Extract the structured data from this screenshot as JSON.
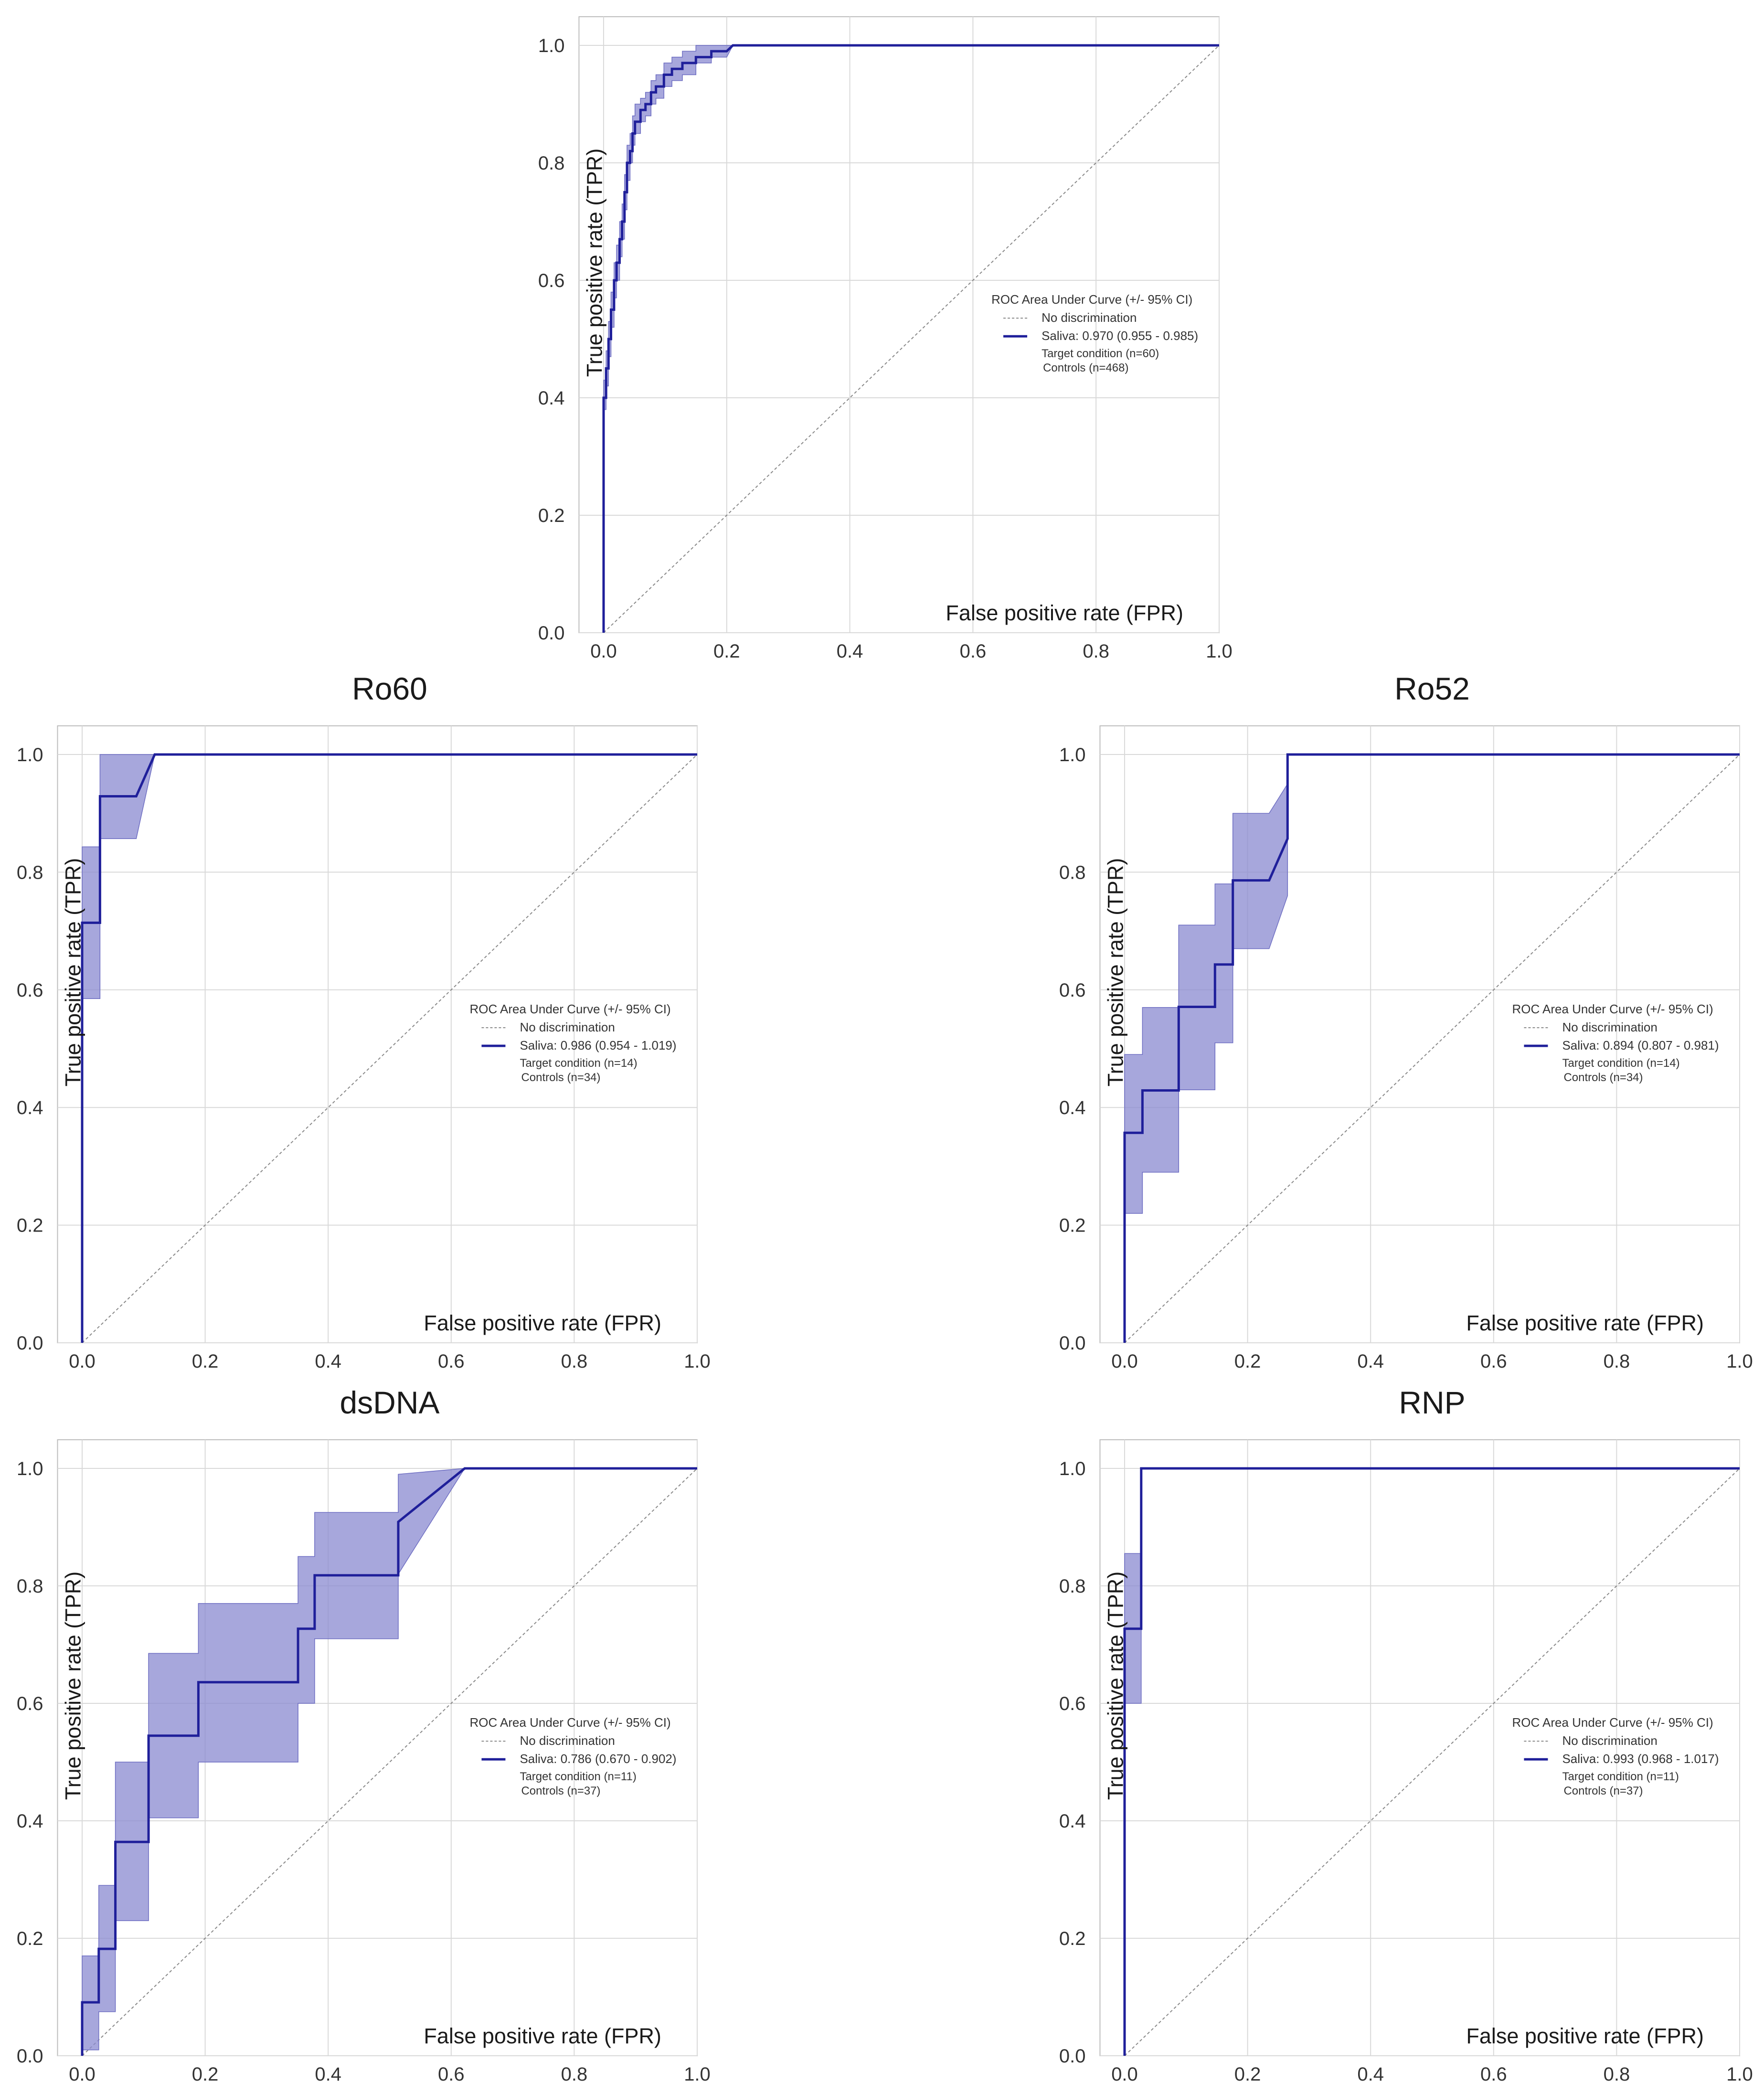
{
  "colors": {
    "curve": "#1f1f9a",
    "ci_band": "#8a8ad0",
    "diagonal": "#888888",
    "grid": "#d9d9d9",
    "frame": "#bdbdbd"
  },
  "chart_data": [
    {
      "id": "overall",
      "type": "line",
      "title": "",
      "xlabel": "False positive rate (FPR)",
      "ylabel": "True positive rate (TPR)",
      "xlim": [
        0,
        1
      ],
      "ylim": [
        0,
        1
      ],
      "grid": true,
      "xticks": [
        "0.0",
        "0.2",
        "0.4",
        "0.6",
        "0.8",
        "1.0"
      ],
      "yticks": [
        "0.0",
        "0.2",
        "0.4",
        "0.6",
        "0.8",
        "1.0"
      ],
      "legend": {
        "title": "ROC Area Under Curve (+/- 95% CI)",
        "no_discrimination": "No discrimination",
        "series_label": "Saliva: 0.970 (0.955 - 0.985)",
        "target": "Target condition (n=60)",
        "controls": "Controls (n=468)",
        "placement": "center-right"
      },
      "series": [
        {
          "name": "Saliva",
          "auc": 0.97,
          "ci": [
            0.955,
            0.985
          ],
          "x": [
            0,
            0,
            0.004,
            0.004,
            0.008,
            0.008,
            0.012,
            0.012,
            0.017,
            0.017,
            0.021,
            0.021,
            0.026,
            0.026,
            0.03,
            0.03,
            0.034,
            0.034,
            0.038,
            0.038,
            0.043,
            0.043,
            0.047,
            0.047,
            0.051,
            0.051,
            0.06,
            0.06,
            0.068,
            0.068,
            0.077,
            0.077,
            0.085,
            0.085,
            0.098,
            0.098,
            0.111,
            0.111,
            0.128,
            0.128,
            0.15,
            0.15,
            0.175,
            0.175,
            0.2,
            0.21,
            1.0
          ],
          "y": [
            0,
            0.4,
            0.4,
            0.45,
            0.45,
            0.5,
            0.5,
            0.55,
            0.55,
            0.6,
            0.6,
            0.63,
            0.63,
            0.67,
            0.67,
            0.7,
            0.7,
            0.75,
            0.75,
            0.8,
            0.8,
            0.82,
            0.82,
            0.85,
            0.85,
            0.87,
            0.87,
            0.89,
            0.89,
            0.9,
            0.9,
            0.92,
            0.92,
            0.93,
            0.93,
            0.95,
            0.95,
            0.96,
            0.96,
            0.97,
            0.97,
            0.98,
            0.98,
            0.99,
            0.99,
            1.0,
            1.0
          ],
          "lower": [
            0,
            0.38,
            0.38,
            0.42,
            0.42,
            0.47,
            0.47,
            0.52,
            0.52,
            0.57,
            0.57,
            0.6,
            0.6,
            0.64,
            0.64,
            0.67,
            0.67,
            0.72,
            0.72,
            0.77,
            0.77,
            0.8,
            0.8,
            0.83,
            0.83,
            0.85,
            0.85,
            0.87,
            0.87,
            0.88,
            0.88,
            0.9,
            0.9,
            0.91,
            0.91,
            0.93,
            0.93,
            0.94,
            0.94,
            0.95,
            0.95,
            0.97,
            0.97,
            0.98,
            0.98,
            1.0,
            1.0
          ],
          "upper": [
            0,
            0.43,
            0.43,
            0.48,
            0.48,
            0.53,
            0.53,
            0.58,
            0.58,
            0.63,
            0.63,
            0.66,
            0.66,
            0.7,
            0.7,
            0.73,
            0.73,
            0.78,
            0.78,
            0.83,
            0.83,
            0.85,
            0.85,
            0.88,
            0.88,
            0.9,
            0.9,
            0.91,
            0.91,
            0.92,
            0.92,
            0.94,
            0.94,
            0.95,
            0.95,
            0.97,
            0.97,
            0.98,
            0.98,
            0.99,
            0.99,
            1.0,
            1.0,
            1.0,
            1.0,
            1.0,
            1.0
          ]
        }
      ]
    },
    {
      "id": "ro60",
      "type": "line",
      "title": "Ro60",
      "xlabel": "False positive rate (FPR)",
      "ylabel": "True positive rate (TPR)",
      "xlim": [
        0,
        1
      ],
      "ylim": [
        0,
        1
      ],
      "grid": true,
      "xticks": [
        "0.0",
        "0.2",
        "0.4",
        "0.6",
        "0.8",
        "1.0"
      ],
      "yticks": [
        "0.0",
        "0.2",
        "0.4",
        "0.6",
        "0.8",
        "1.0"
      ],
      "legend": {
        "title": "ROC Area Under Curve (+/- 95% CI)",
        "no_discrimination": "No discrimination",
        "series_label": "Saliva: 0.986 (0.954 - 1.019)",
        "target": "Target condition (n=14)",
        "controls": "Controls (n=34)",
        "placement": "center-right"
      },
      "series": [
        {
          "name": "Saliva",
          "auc": 0.986,
          "ci": [
            0.954,
            1.019
          ],
          "x": [
            0,
            0,
            0.029,
            0.029,
            0.088,
            0.118,
            1.0
          ],
          "y": [
            0,
            0.714,
            0.714,
            0.929,
            0.929,
            1.0,
            1.0
          ],
          "lower": [
            0,
            0.585,
            0.585,
            0.857,
            0.857,
            1.0,
            1.0
          ],
          "upper": [
            0,
            0.843,
            0.843,
            1.0,
            1.0,
            1.0,
            1.0
          ]
        }
      ]
    },
    {
      "id": "ro52",
      "type": "line",
      "title": "Ro52",
      "xlabel": "False positive rate (FPR)",
      "ylabel": "True positive rate (TPR)",
      "xlim": [
        0,
        1
      ],
      "ylim": [
        0,
        1
      ],
      "grid": true,
      "xticks": [
        "0.0",
        "0.2",
        "0.4",
        "0.6",
        "0.8",
        "1.0"
      ],
      "yticks": [
        "0.0",
        "0.2",
        "0.4",
        "0.6",
        "0.8",
        "1.0"
      ],
      "legend": {
        "title": "ROC Area Under Curve (+/- 95% CI)",
        "no_discrimination": "No discrimination",
        "series_label": "Saliva: 0.894 (0.807 - 0.981)",
        "target": "Target condition (n=14)",
        "controls": "Controls (n=34)",
        "placement": "center-right"
      },
      "series": [
        {
          "name": "Saliva",
          "auc": 0.894,
          "ci": [
            0.807,
            0.981
          ],
          "x": [
            0,
            0,
            0.029,
            0.029,
            0.088,
            0.088,
            0.147,
            0.147,
            0.176,
            0.176,
            0.235,
            0.265,
            0.265,
            1.0
          ],
          "y": [
            0,
            0.357,
            0.357,
            0.429,
            0.429,
            0.571,
            0.571,
            0.643,
            0.643,
            0.786,
            0.786,
            0.857,
            1.0,
            1.0
          ],
          "lower": [
            0,
            0.22,
            0.22,
            0.29,
            0.29,
            0.43,
            0.43,
            0.51,
            0.51,
            0.67,
            0.67,
            0.76,
            1.0,
            1.0
          ],
          "upper": [
            0,
            0.49,
            0.49,
            0.57,
            0.57,
            0.71,
            0.71,
            0.78,
            0.78,
            0.9,
            0.9,
            0.95,
            1.0,
            1.0
          ]
        }
      ]
    },
    {
      "id": "dsdna",
      "type": "line",
      "title": "dsDNA",
      "xlabel": "False positive rate (FPR)",
      "ylabel": "True positive rate (TPR)",
      "xlim": [
        0,
        1
      ],
      "ylim": [
        0,
        1
      ],
      "grid": true,
      "xticks": [
        "0.0",
        "0.2",
        "0.4",
        "0.6",
        "0.8",
        "1.0"
      ],
      "yticks": [
        "0.0",
        "0.2",
        "0.4",
        "0.6",
        "0.8",
        "1.0"
      ],
      "legend": {
        "title": "ROC Area Under Curve (+/- 95% CI)",
        "no_discrimination": "No discrimination",
        "series_label": "Saliva: 0.786 (0.670 - 0.902)",
        "target": "Target condition (n=11)",
        "controls": "Controls (n=37)",
        "placement": "center-right"
      },
      "series": [
        {
          "name": "Saliva",
          "auc": 0.786,
          "ci": [
            0.67,
            0.902
          ],
          "x": [
            0,
            0,
            0.027,
            0.027,
            0.054,
            0.054,
            0.108,
            0.108,
            0.189,
            0.189,
            0.351,
            0.351,
            0.378,
            0.378,
            0.514,
            0.514,
            0.622,
            1.0
          ],
          "y": [
            0,
            0.091,
            0.091,
            0.182,
            0.182,
            0.364,
            0.364,
            0.545,
            0.545,
            0.636,
            0.636,
            0.727,
            0.727,
            0.818,
            0.818,
            0.909,
            1.0,
            1.0
          ],
          "lower": [
            0,
            0.01,
            0.01,
            0.075,
            0.075,
            0.23,
            0.23,
            0.405,
            0.405,
            0.5,
            0.5,
            0.6,
            0.6,
            0.71,
            0.71,
            0.82,
            1.0,
            1.0
          ],
          "upper": [
            0,
            0.17,
            0.17,
            0.29,
            0.29,
            0.5,
            0.5,
            0.685,
            0.685,
            0.77,
            0.77,
            0.85,
            0.85,
            0.925,
            0.925,
            0.99,
            1.0,
            1.0
          ]
        }
      ]
    },
    {
      "id": "rnp",
      "type": "line",
      "title": "RNP",
      "xlabel": "False positive rate (FPR)",
      "ylabel": "True positive rate (TPR)",
      "xlim": [
        0,
        1
      ],
      "ylim": [
        0,
        1
      ],
      "grid": true,
      "xticks": [
        "0.0",
        "0.2",
        "0.4",
        "0.6",
        "0.8",
        "1.0"
      ],
      "yticks": [
        "0.0",
        "0.2",
        "0.4",
        "0.6",
        "0.8",
        "1.0"
      ],
      "legend": {
        "title": "ROC Area Under Curve (+/- 95% CI)",
        "no_discrimination": "No discrimination",
        "series_label": "Saliva: 0.993 (0.968 - 1.017)",
        "target": "Target condition (n=11)",
        "controls": "Controls (n=37)",
        "placement": "center-right"
      },
      "series": [
        {
          "name": "Saliva",
          "auc": 0.993,
          "ci": [
            0.968,
            1.017
          ],
          "x": [
            0,
            0,
            0.027,
            0.027,
            1.0
          ],
          "y": [
            0,
            0.727,
            0.727,
            1.0,
            1.0
          ],
          "lower": [
            0,
            0.6,
            0.6,
            1.0,
            1.0
          ],
          "upper": [
            0,
            0.855,
            0.855,
            1.0,
            1.0
          ]
        }
      ]
    }
  ]
}
